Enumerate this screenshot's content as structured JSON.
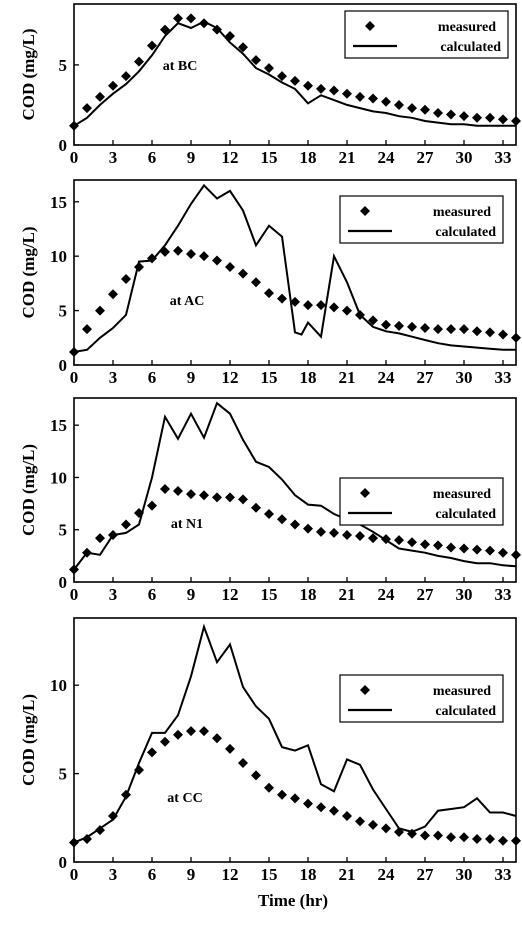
{
  "figure": {
    "xlabel": "Time (hr)"
  },
  "chart_data": [
    {
      "type": "line",
      "annotation": "at BC",
      "ylabel": "COD (mg/L)",
      "xlim": [
        0,
        34
      ],
      "ylim": [
        0,
        8.8
      ],
      "xticks": [
        "0",
        "3",
        "6",
        "9",
        "12",
        "15",
        "18",
        "21",
        "24",
        "27",
        "30",
        "33"
      ],
      "yticks": [
        "0",
        "5"
      ],
      "legend": {
        "placement": "top-right",
        "entries": [
          "measured",
          "calculated"
        ]
      },
      "series": [
        {
          "name": "measured",
          "style": "diamond-markers",
          "x": [
            0,
            1,
            2,
            3,
            4,
            5,
            6,
            7,
            8,
            9,
            10,
            11,
            12,
            13,
            14,
            15,
            16,
            17,
            18,
            19,
            20,
            21,
            22,
            23,
            24,
            25,
            26,
            27,
            28,
            29,
            30,
            31,
            32,
            33,
            34
          ],
          "y": [
            1.2,
            2.3,
            3.0,
            3.7,
            4.3,
            5.2,
            6.2,
            7.2,
            7.9,
            7.9,
            7.6,
            7.2,
            6.8,
            6.1,
            5.3,
            4.8,
            4.3,
            4.0,
            3.7,
            3.5,
            3.4,
            3.2,
            3.0,
            2.9,
            2.7,
            2.5,
            2.3,
            2.2,
            2.0,
            1.9,
            1.8,
            1.7,
            1.7,
            1.6,
            1.5
          ]
        },
        {
          "name": "calculated",
          "style": "solid-line",
          "x": [
            0,
            1,
            2,
            3,
            4,
            5,
            6,
            7,
            8,
            9,
            10,
            11,
            12,
            13,
            14,
            15,
            16,
            17,
            18,
            19,
            20,
            21,
            22,
            23,
            24,
            25,
            26,
            27,
            28,
            29,
            30,
            31,
            32,
            33,
            34
          ],
          "y": [
            1.2,
            1.7,
            2.5,
            3.2,
            3.8,
            4.6,
            5.6,
            6.8,
            7.6,
            7.3,
            7.7,
            7.3,
            6.4,
            5.7,
            4.8,
            4.4,
            3.9,
            3.5,
            2.6,
            3.1,
            2.8,
            2.5,
            2.3,
            2.1,
            2.0,
            1.8,
            1.7,
            1.5,
            1.4,
            1.3,
            1.3,
            1.2,
            1.2,
            1.2,
            1.2
          ]
        }
      ]
    },
    {
      "type": "line",
      "annotation": "at AC",
      "ylabel": "COD (mg/L)",
      "xlim": [
        0,
        34
      ],
      "ylim": [
        0,
        17
      ],
      "xticks": [
        "0",
        "3",
        "6",
        "9",
        "12",
        "15",
        "18",
        "21",
        "24",
        "27",
        "30",
        "33"
      ],
      "yticks": [
        "0",
        "5",
        "10",
        "15"
      ],
      "legend": {
        "placement": "top-right",
        "entries": [
          "measured",
          "calculated"
        ]
      },
      "series": [
        {
          "name": "measured",
          "style": "diamond-markers",
          "x": [
            0,
            1,
            2,
            3,
            4,
            5,
            6,
            7,
            8,
            9,
            10,
            11,
            12,
            13,
            14,
            15,
            16,
            17,
            18,
            19,
            20,
            21,
            22,
            23,
            24,
            25,
            26,
            27,
            28,
            29,
            30,
            31,
            32,
            33,
            34
          ],
          "y": [
            1.2,
            3.3,
            5.0,
            6.5,
            7.9,
            9.0,
            9.8,
            10.4,
            10.5,
            10.2,
            10.0,
            9.6,
            9.0,
            8.4,
            7.6,
            6.6,
            6.1,
            5.8,
            5.5,
            5.5,
            5.3,
            5.0,
            4.6,
            4.1,
            3.7,
            3.6,
            3.5,
            3.4,
            3.3,
            3.3,
            3.3,
            3.1,
            3.0,
            2.8,
            2.5
          ]
        },
        {
          "name": "calculated",
          "style": "solid-line",
          "x": [
            0,
            1,
            2,
            3,
            4,
            5,
            6,
            7,
            8,
            9,
            10,
            11,
            12,
            13,
            14,
            15,
            16,
            17,
            17.5,
            18,
            19,
            20,
            21,
            22,
            23,
            24,
            25,
            26,
            27,
            28,
            29,
            30,
            31,
            32,
            33,
            34
          ],
          "y": [
            1.2,
            1.4,
            2.5,
            3.4,
            4.6,
            9.5,
            9.6,
            11.0,
            12.8,
            14.8,
            16.5,
            15.3,
            16.0,
            14.2,
            11.0,
            12.8,
            11.8,
            3.0,
            2.8,
            3.9,
            2.6,
            10.0,
            7.6,
            4.6,
            3.5,
            3.1,
            2.9,
            2.6,
            2.3,
            2.0,
            1.8,
            1.7,
            1.6,
            1.5,
            1.4,
            1.4
          ]
        }
      ]
    },
    {
      "type": "line",
      "annotation": "at N1",
      "ylabel": "COD (mg/L)",
      "xlim": [
        0,
        34
      ],
      "ylim": [
        0,
        17.6
      ],
      "xticks": [
        "0",
        "3",
        "6",
        "9",
        "12",
        "15",
        "18",
        "21",
        "24",
        "27",
        "30",
        "33"
      ],
      "yticks": [
        "0",
        "5",
        "10",
        "15"
      ],
      "legend": {
        "placement": "top-right",
        "entries": [
          "measured",
          "calculated"
        ]
      },
      "series": [
        {
          "name": "measured",
          "style": "diamond-markers",
          "x": [
            0,
            1,
            2,
            3,
            4,
            5,
            6,
            7,
            8,
            9,
            10,
            11,
            12,
            13,
            14,
            15,
            16,
            17,
            18,
            19,
            20,
            21,
            22,
            23,
            24,
            25,
            26,
            27,
            28,
            29,
            30,
            31,
            32,
            33,
            34
          ],
          "y": [
            1.2,
            2.8,
            4.2,
            4.5,
            5.5,
            6.6,
            7.3,
            8.9,
            8.7,
            8.4,
            8.3,
            8.1,
            8.1,
            7.9,
            7.1,
            6.5,
            6.0,
            5.5,
            5.1,
            4.8,
            4.7,
            4.5,
            4.4,
            4.2,
            4.1,
            4.0,
            3.8,
            3.6,
            3.5,
            3.3,
            3.2,
            3.1,
            3.0,
            2.8,
            2.6
          ]
        },
        {
          "name": "calculated",
          "style": "solid-line",
          "x": [
            0,
            1,
            2,
            3,
            4,
            5,
            6,
            7,
            8,
            9,
            10,
            11,
            12,
            13,
            14,
            15,
            16,
            17,
            18,
            19,
            20,
            21,
            22,
            23,
            24,
            25,
            26,
            27,
            28,
            29,
            30,
            31,
            32,
            33,
            34
          ],
          "y": [
            1.2,
            2.8,
            2.6,
            4.5,
            4.7,
            5.5,
            10.0,
            15.8,
            13.7,
            16.1,
            13.8,
            17.1,
            16.1,
            13.6,
            11.5,
            11.0,
            9.8,
            8.3,
            7.4,
            7.3,
            6.5,
            6.0,
            5.5,
            4.8,
            4.0,
            3.2,
            3.0,
            2.8,
            2.5,
            2.3,
            2.0,
            1.8,
            1.8,
            1.6,
            1.5
          ]
        }
      ]
    },
    {
      "type": "line",
      "annotation": "at CC",
      "ylabel": "COD (mg/L)",
      "xlim": [
        0,
        34
      ],
      "ylim": [
        0,
        13.8
      ],
      "xticks": [
        "0",
        "3",
        "6",
        "9",
        "12",
        "15",
        "18",
        "21",
        "24",
        "27",
        "30",
        "33"
      ],
      "yticks": [
        "0",
        "5",
        "10"
      ],
      "legend": {
        "placement": "top-right",
        "entries": [
          "measured",
          "calculated"
        ]
      },
      "series": [
        {
          "name": "measured",
          "style": "diamond-markers",
          "x": [
            0,
            1,
            2,
            3,
            4,
            5,
            6,
            7,
            8,
            9,
            10,
            11,
            12,
            13,
            14,
            15,
            16,
            17,
            18,
            19,
            20,
            21,
            22,
            23,
            24,
            25,
            26,
            27,
            28,
            29,
            30,
            31,
            32,
            33,
            34
          ],
          "y": [
            1.1,
            1.3,
            1.8,
            2.6,
            3.8,
            5.2,
            6.2,
            6.8,
            7.2,
            7.4,
            7.4,
            7.0,
            6.4,
            5.6,
            4.9,
            4.2,
            3.8,
            3.6,
            3.3,
            3.1,
            2.9,
            2.6,
            2.3,
            2.1,
            1.9,
            1.7,
            1.6,
            1.5,
            1.5,
            1.4,
            1.4,
            1.3,
            1.3,
            1.2,
            1.2
          ]
        },
        {
          "name": "calculated",
          "style": "solid-line",
          "x": [
            0,
            1,
            2,
            3,
            4,
            5,
            6,
            7,
            8,
            9,
            10,
            11,
            12,
            13,
            14,
            15,
            16,
            17,
            18,
            19,
            20,
            21,
            22,
            23,
            24,
            25,
            26,
            27,
            28,
            29,
            30,
            31,
            32,
            33,
            34
          ],
          "y": [
            1.1,
            1.4,
            1.9,
            2.4,
            3.7,
            5.6,
            7.3,
            7.3,
            8.3,
            10.5,
            13.3,
            11.3,
            12.3,
            9.9,
            8.8,
            8.1,
            6.5,
            6.3,
            6.6,
            4.4,
            4.0,
            5.8,
            5.5,
            4.1,
            3.0,
            1.9,
            1.7,
            2.0,
            2.9,
            3.0,
            3.1,
            3.6,
            2.8,
            2.8,
            2.6
          ]
        }
      ]
    }
  ]
}
